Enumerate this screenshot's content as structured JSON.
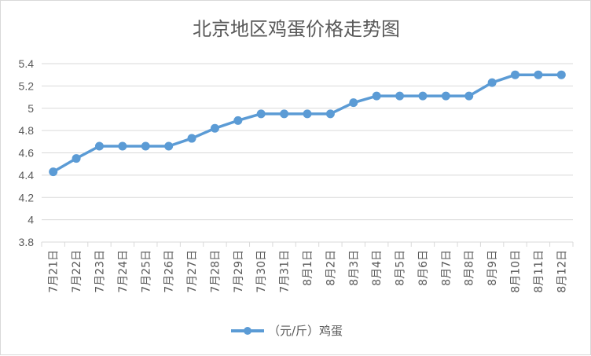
{
  "chart_data": {
    "type": "line",
    "title": "北京地区鸡蛋价格走势图",
    "categories": [
      "7月21日",
      "7月22日",
      "7月23日",
      "7月24日",
      "7月25日",
      "7月26日",
      "7月27日",
      "7月28日",
      "7月29日",
      "7月30日",
      "7月31日",
      "8月1日",
      "8月2日",
      "8月3日",
      "8月4日",
      "8月5日",
      "8月6日",
      "8月7日",
      "8月8日",
      "8月9日",
      "8月10日",
      "8月11日",
      "8月12日"
    ],
    "series": [
      {
        "name": "（元/斤）鸡蛋",
        "values": [
          4.43,
          4.55,
          4.66,
          4.66,
          4.66,
          4.66,
          4.73,
          4.82,
          4.89,
          4.95,
          4.95,
          4.95,
          4.95,
          5.05,
          5.11,
          5.11,
          5.11,
          5.11,
          5.11,
          5.23,
          5.3,
          5.3,
          5.3
        ]
      }
    ],
    "ylim": [
      3.8,
      5.4
    ],
    "yticks": [
      "3.8",
      "4",
      "4.2",
      "4.4",
      "4.6",
      "4.8",
      "5",
      "5.2",
      "5.4"
    ],
    "grid": true,
    "legend": "bottom",
    "colors": {
      "series": "#5b9bd5",
      "grid": "#d9d9d9",
      "text": "#595959"
    }
  }
}
